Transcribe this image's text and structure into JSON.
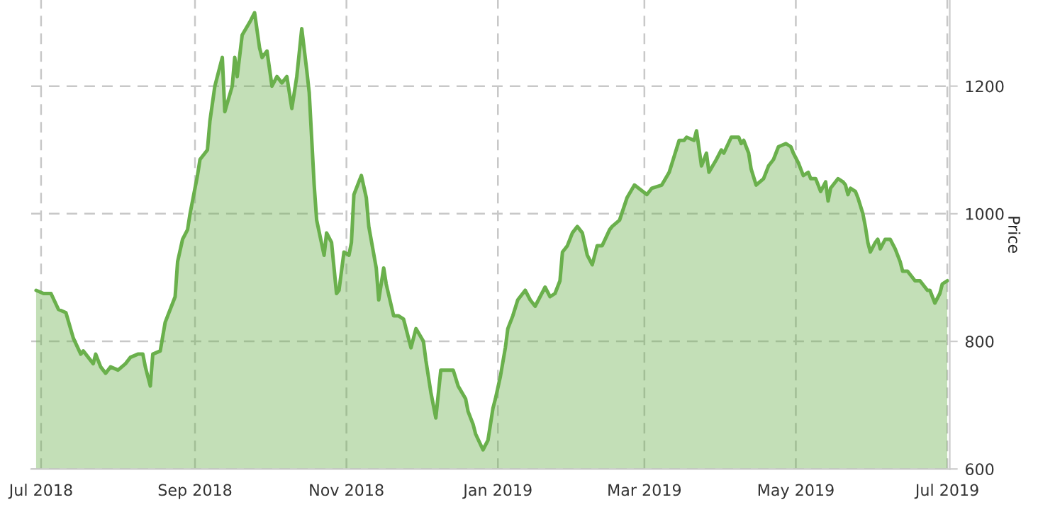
{
  "chart_data": {
    "type": "area",
    "ylabel": "Price",
    "x": [
      "2018-06-29",
      "2018-07-02",
      "2018-07-05",
      "2018-07-08",
      "2018-07-11",
      "2018-07-14",
      "2018-07-17",
      "2018-07-18",
      "2018-07-20",
      "2018-07-22",
      "2018-07-23",
      "2018-07-25",
      "2018-07-27",
      "2018-07-29",
      "2018-08-01",
      "2018-08-04",
      "2018-08-06",
      "2018-08-09",
      "2018-08-11",
      "2018-08-12",
      "2018-08-14",
      "2018-08-15",
      "2018-08-18",
      "2018-08-20",
      "2018-08-24",
      "2018-08-25",
      "2018-08-27",
      "2018-08-29",
      "2018-08-30",
      "2018-08-31",
      "2018-09-02",
      "2018-09-03",
      "2018-09-06",
      "2018-09-07",
      "2018-09-09",
      "2018-09-12",
      "2018-09-13",
      "2018-09-16",
      "2018-09-17",
      "2018-09-18",
      "2018-09-20",
      "2018-09-23",
      "2018-09-25",
      "2018-09-27",
      "2018-09-28",
      "2018-09-30",
      "2018-10-02",
      "2018-10-04",
      "2018-10-06",
      "2018-10-08",
      "2018-10-10",
      "2018-10-12",
      "2018-10-14",
      "2018-10-16",
      "2018-10-17",
      "2018-10-19",
      "2018-10-20",
      "2018-10-23",
      "2018-10-24",
      "2018-10-26",
      "2018-10-28",
      "2018-10-29",
      "2018-10-31",
      "2018-11-02",
      "2018-11-03",
      "2018-11-04",
      "2018-11-07",
      "2018-11-09",
      "2018-11-10",
      "2018-11-13",
      "2018-11-14",
      "2018-11-16",
      "2018-11-17",
      "2018-11-20",
      "2018-11-22",
      "2018-11-24",
      "2018-11-27",
      "2018-11-29",
      "2018-12-02",
      "2018-12-03",
      "2018-12-05",
      "2018-12-07",
      "2018-12-09",
      "2018-12-12",
      "2018-12-14",
      "2018-12-16",
      "2018-12-19",
      "2018-12-20",
      "2018-12-22",
      "2018-12-23",
      "2018-12-26",
      "2018-12-28",
      "2018-12-30",
      "2018-12-31",
      "2019-01-02",
      "2019-01-04",
      "2019-01-05",
      "2019-01-07",
      "2019-01-09",
      "2019-01-12",
      "2019-01-14",
      "2019-01-16",
      "2019-01-18",
      "2019-01-20",
      "2019-01-22",
      "2019-01-24",
      "2019-01-26",
      "2019-01-27",
      "2019-01-29",
      "2019-01-31",
      "2019-02-02",
      "2019-02-04",
      "2019-02-06",
      "2019-02-08",
      "2019-02-10",
      "2019-02-12",
      "2019-02-15",
      "2019-02-16",
      "2019-02-19",
      "2019-02-22",
      "2019-02-25",
      "2019-03-02",
      "2019-03-04",
      "2019-03-08",
      "2019-03-11",
      "2019-03-13",
      "2019-03-15",
      "2019-03-17",
      "2019-03-18",
      "2019-03-21",
      "2019-03-22",
      "2019-03-24",
      "2019-03-26",
      "2019-03-27",
      "2019-03-30",
      "2019-04-01",
      "2019-04-02",
      "2019-04-05",
      "2019-04-08",
      "2019-04-09",
      "2019-04-10",
      "2019-04-12",
      "2019-04-13",
      "2019-04-15",
      "2019-04-18",
      "2019-04-20",
      "2019-04-22",
      "2019-04-24",
      "2019-04-27",
      "2019-04-29",
      "2019-04-30",
      "2019-05-02",
      "2019-05-03",
      "2019-05-04",
      "2019-05-06",
      "2019-05-07",
      "2019-05-09",
      "2019-05-11",
      "2019-05-13",
      "2019-05-14",
      "2019-05-15",
      "2019-05-17",
      "2019-05-18",
      "2019-05-20",
      "2019-05-21",
      "2019-05-22",
      "2019-05-23",
      "2019-05-25",
      "2019-05-26",
      "2019-05-28",
      "2019-05-29",
      "2019-05-30",
      "2019-05-31",
      "2019-06-02",
      "2019-06-03",
      "2019-06-04",
      "2019-06-06",
      "2019-06-08",
      "2019-06-10",
      "2019-06-12",
      "2019-06-13",
      "2019-06-15",
      "2019-06-17",
      "2019-06-18",
      "2019-06-20",
      "2019-06-23",
      "2019-06-24",
      "2019-06-26",
      "2019-06-28",
      "2019-06-29",
      "2019-07-01"
    ],
    "series": [
      {
        "color": "#6ab04c",
        "values": [
          880,
          875,
          875,
          850,
          845,
          805,
          780,
          785,
          775,
          765,
          780,
          760,
          750,
          760,
          755,
          765,
          775,
          780,
          780,
          760,
          730,
          780,
          785,
          830,
          870,
          925,
          960,
          975,
          1000,
          1020,
          1060,
          1085,
          1100,
          1145,
          1200,
          1245,
          1160,
          1200,
          1245,
          1215,
          1280,
          1300,
          1315,
          1260,
          1245,
          1255,
          1200,
          1215,
          1205,
          1215,
          1165,
          1215,
          1290,
          1225,
          1190,
          1045,
          990,
          935,
          970,
          955,
          875,
          880,
          940,
          935,
          955,
          1030,
          1060,
          1025,
          980,
          915,
          865,
          915,
          890,
          840,
          840,
          835,
          790,
          820,
          800,
          770,
          720,
          680,
          755,
          755,
          755,
          730,
          710,
          690,
          670,
          655,
          630,
          645,
          695,
          710,
          745,
          790,
          820,
          840,
          865,
          880,
          865,
          855,
          870,
          885,
          870,
          875,
          895,
          940,
          950,
          970,
          980,
          970,
          935,
          920,
          950,
          950,
          975,
          980,
          990,
          1025,
          1045,
          1030,
          1040,
          1045,
          1065,
          1090,
          1115,
          1115,
          1120,
          1115,
          1130,
          1075,
          1095,
          1065,
          1085,
          1100,
          1095,
          1120,
          1120,
          1110,
          1115,
          1095,
          1070,
          1045,
          1055,
          1075,
          1085,
          1105,
          1110,
          1105,
          1095,
          1080,
          1070,
          1060,
          1065,
          1055,
          1055,
          1035,
          1050,
          1020,
          1040,
          1050,
          1055,
          1050,
          1045,
          1030,
          1040,
          1035,
          1025,
          1000,
          980,
          955,
          940,
          955,
          960,
          945,
          960,
          960,
          945,
          925,
          910,
          910,
          900,
          895,
          895,
          880,
          880,
          860,
          875,
          890,
          895
        ]
      }
    ],
    "xlim": [
      "2018-06-27",
      "2019-07-02"
    ],
    "xticks": [
      {
        "value": "2018-07-01",
        "label": "Jul 2018"
      },
      {
        "value": "2018-09-01",
        "label": "Sep 2018"
      },
      {
        "value": "2018-11-01",
        "label": "Nov 2018"
      },
      {
        "value": "2019-01-01",
        "label": "Jan 2019"
      },
      {
        "value": "2019-03-01",
        "label": "Mar 2019"
      },
      {
        "value": "2019-05-01",
        "label": "May 2019"
      },
      {
        "value": "2019-07-01",
        "label": "Jul 2019"
      }
    ],
    "ylim": [
      600,
      1335
    ],
    "yticks": [
      600,
      800,
      1000,
      1200
    ],
    "grid": true
  }
}
